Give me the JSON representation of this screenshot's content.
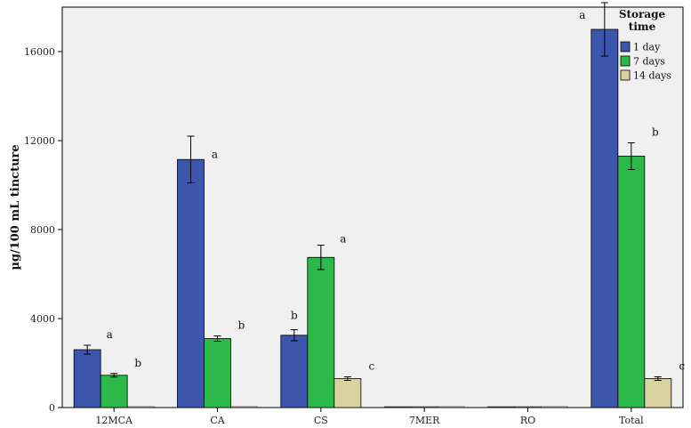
{
  "chart_data": {
    "type": "bar",
    "ylabel": "µg/100 mL tincture",
    "xlabel": "",
    "ylim": [
      0,
      18000
    ],
    "yticks": [
      0,
      4000,
      8000,
      12000,
      16000
    ],
    "categories": [
      "12MCA",
      "CA",
      "CS",
      "7MER",
      "RO",
      "Total"
    ],
    "legend": {
      "title": "Storage time",
      "placement": "top-right"
    },
    "grid": false,
    "series": [
      {
        "name": "1 day",
        "color": "#3c55ad",
        "values": [
          2600,
          11150,
          3250,
          0,
          0,
          17000
        ],
        "errors": [
          200,
          1050,
          250,
          0,
          0,
          1200
        ],
        "labels": [
          "a",
          "a",
          "b",
          "",
          "",
          "a"
        ]
      },
      {
        "name": "7 days",
        "color": "#2db84a",
        "values": [
          1450,
          3100,
          6750,
          0,
          0,
          11300
        ],
        "errors": [
          80,
          120,
          550,
          0,
          0,
          600
        ],
        "labels": [
          "b",
          "b",
          "a",
          "",
          "",
          "b"
        ]
      },
      {
        "name": "14 days",
        "color": "#d9d3a0",
        "values": [
          0,
          0,
          1300,
          0,
          0,
          1300
        ],
        "errors": [
          0,
          0,
          80,
          0,
          0,
          80
        ],
        "labels": [
          "",
          "",
          "c",
          "",
          "",
          "c"
        ]
      }
    ]
  }
}
